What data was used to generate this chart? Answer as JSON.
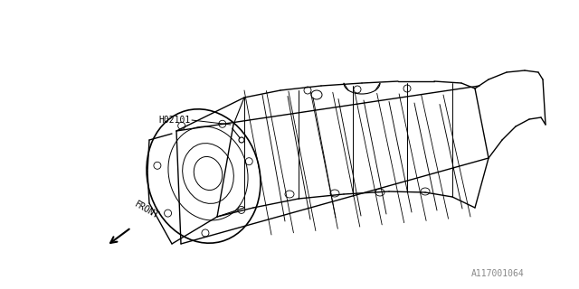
{
  "background_color": "#ffffff",
  "line_color": "#000000",
  "label_h02101": "H02101",
  "label_front": "FRONT",
  "label_part_number": "A117001064",
  "fig_width": 6.4,
  "fig_height": 3.2,
  "dpi": 100
}
